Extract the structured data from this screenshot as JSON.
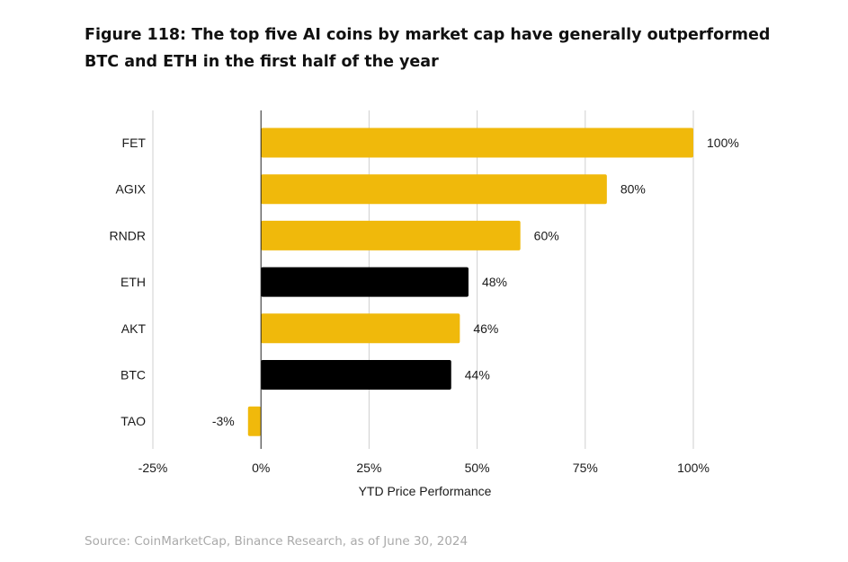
{
  "title": "Figure 118: The top five AI coins by market cap have generally outperformed BTC and ETH in the first half of the year",
  "source": "Source: CoinMarketCap, Binance Research, as of June 30, 2024",
  "chart_data": {
    "type": "bar",
    "orientation": "horizontal",
    "categories": [
      "FET",
      "AGIX",
      "RNDR",
      "ETH",
      "AKT",
      "BTC",
      "TAO"
    ],
    "values": [
      100,
      80,
      60,
      48,
      46,
      44,
      -3
    ],
    "labels": [
      "100%",
      "80%",
      "60%",
      "48%",
      "46%",
      "44%",
      "-3%"
    ],
    "colors": [
      "#f0b90b",
      "#f0b90b",
      "#f0b90b",
      "#000000",
      "#f0b90b",
      "#000000",
      "#f0b90b"
    ],
    "xlabel": "YTD Price Performance",
    "ylabel": "",
    "xlim": [
      -25,
      100
    ],
    "xticks": [
      -25,
      0,
      25,
      50,
      75,
      100
    ],
    "xtick_labels": [
      "-25%",
      "0%",
      "25%",
      "50%",
      "75%",
      "100%"
    ],
    "grid": true
  }
}
